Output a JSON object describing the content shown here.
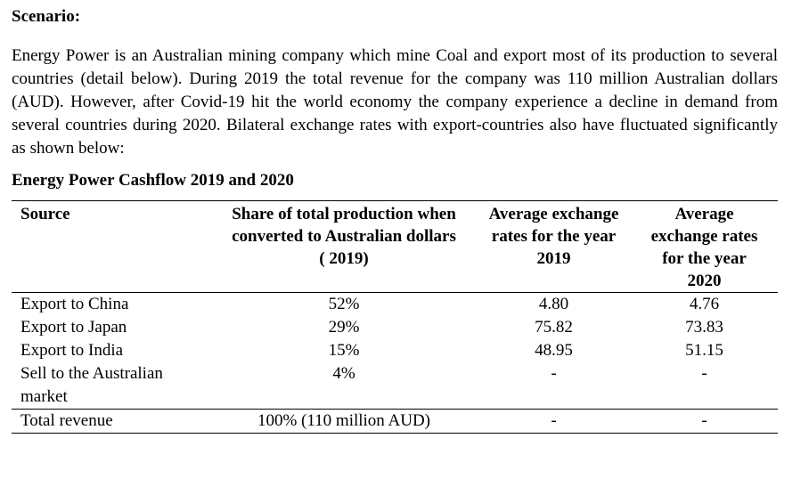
{
  "scenario": {
    "heading": "Scenario:",
    "paragraph": "Energy Power is an Australian mining company which mine Coal and export most of its production to several countries (detail below). During 2019 the total revenue for the company was 110 million Australian dollars (AUD). However, after Covid-19 hit the world economy the company experience a decline in demand from several countries during 2020. Bilateral exchange rates with export-countries also have fluctuated significantly as shown below:"
  },
  "table": {
    "title": "Energy Power Cashflow 2019 and 2020",
    "headers": [
      "Source",
      "Share of total production when converted to Australian dollars ( 2019)",
      "Average exchange rates for the year 2019",
      "Average exchange rates for the year 2020"
    ],
    "rows": [
      [
        "Export to China",
        "52%",
        "4.80",
        "4.76"
      ],
      [
        "Export to Japan",
        "29%",
        "75.82",
        "73.83"
      ],
      [
        "Export to India",
        "15%",
        "48.95",
        "51.15"
      ],
      [
        "Sell to the Australian market",
        "4%",
        "-",
        "-"
      ]
    ],
    "total": [
      "Total revenue",
      "100% (110 million AUD)",
      "-",
      "-"
    ]
  }
}
